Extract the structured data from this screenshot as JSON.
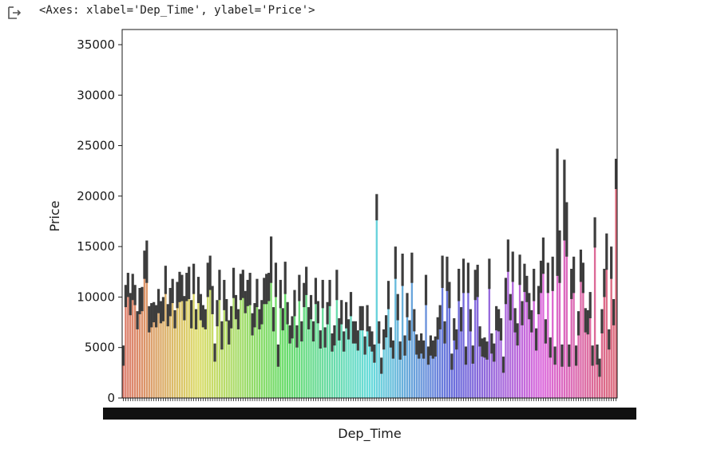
{
  "output_prompt": {
    "icon": "output-arrow-icon",
    "text": "<Axes: xlabel='Dep_Time', ylabel='Price'>"
  },
  "chart_data": {
    "type": "bar",
    "title": "",
    "xlabel": "Dep_Time",
    "ylabel": "Price",
    "ylim": [
      0,
      36500
    ],
    "yticks": [
      0,
      5000,
      10000,
      15000,
      20000,
      25000,
      30000,
      35000
    ],
    "grid": false,
    "legend": "none",
    "palette": "husl",
    "values": [
      4200,
      10100,
      11200,
      9300,
      11000,
      10200,
      7700,
      9600,
      9800,
      13200,
      13500,
      7800,
      8200,
      8500,
      8100,
      9600,
      8500,
      8800,
      11700,
      8200,
      9500,
      10600,
      7800,
      10200,
      11000,
      10900,
      8900,
      11000,
      11400,
      8300,
      11800,
      7800,
      10700,
      9000,
      8100,
      7800,
      11700,
      12400,
      9700,
      4500,
      8400,
      11200,
      6200,
      10200,
      8700,
      6500,
      8000,
      11400,
      9000,
      7800,
      11000,
      11300,
      9500,
      10400,
      10800,
      7300,
      8200,
      10400,
      7800,
      8500,
      10600,
      10800,
      11000,
      13700,
      7800,
      11700,
      4200,
      10300,
      7800,
      11900,
      8400,
      6300,
      7000,
      9400,
      6100,
      10900,
      6600,
      10200,
      11600,
      7900,
      9000,
      6600,
      10600,
      8500,
      5800,
      10300,
      6000,
      8400,
      10400,
      5500,
      6200,
      11200,
      6800,
      8500,
      5600,
      8200,
      6800,
      9300,
      6500,
      6500,
      5700,
      7900,
      7900,
      5200,
      7900,
      6100,
      5600,
      4400,
      18900,
      6500,
      3200,
      5800,
      7100,
      10200,
      6000,
      4800,
      13400,
      9000,
      4700,
      12700,
      5200,
      9200,
      6700,
      12900,
      7700,
      5300,
      4800,
      5400,
      4800,
      10700,
      4200,
      5200,
      4800,
      5100,
      6900,
      8000,
      12500,
      6500,
      12300,
      10200,
      3600,
      6800,
      5800,
      11200,
      7800,
      12100,
      4200,
      11900,
      7700,
      4300,
      11200,
      11600,
      6100,
      5000,
      5000,
      4700,
      12300,
      5400,
      4500,
      7900,
      7700,
      6800,
      3300,
      10600,
      14100,
      9000,
      13000,
      7700,
      6300,
      12700,
      8400,
      11900,
      10800,
      9100,
      7600,
      11200,
      5800,
      9700,
      12000,
      14100,
      6600,
      11900,
      5000,
      12300,
      4200,
      18400,
      14000,
      4200,
      19600,
      16700,
      4200,
      11300,
      12200,
      4200,
      7400,
      13100,
      11900,
      7700,
      7500,
      9200,
      4200,
      16400,
      4300,
      3000,
      7600,
      11400,
      14500,
      5800,
      13400,
      8500,
      22200
    ],
    "errors": [
      1000,
      1100,
      1200,
      1100,
      1300,
      1000,
      900,
      1300,
      1200,
      1400,
      2100,
      1300,
      1200,
      1000,
      1100,
      1200,
      1100,
      1200,
      1400,
      1100,
      1400,
      1200,
      900,
      1300,
      1500,
      1300,
      1200,
      1400,
      1600,
      1400,
      1500,
      1000,
      1300,
      1300,
      1100,
      1000,
      1700,
      1700,
      1400,
      900,
      1300,
      1500,
      1400,
      1500,
      1100,
      1200,
      1100,
      1500,
      1200,
      1000,
      1300,
      1400,
      1100,
      1300,
      1600,
      1100,
      1200,
      1400,
      1000,
      1200,
      1300,
      1500,
      1400,
      2300,
      1200,
      1700,
      1100,
      1400,
      1100,
      1600,
      1100,
      900,
      1100,
      1300,
      1100,
      1300,
      1000,
      1200,
      1400,
      1100,
      1200,
      1000,
      1300,
      1100,
      900,
      1400,
      1000,
      1100,
      1300,
      900,
      1000,
      1500,
      1100,
      1200,
      1000,
      1300,
      1000,
      1200,
      1100,
      1100,
      1000,
      1200,
      1200,
      900,
      1300,
      1000,
      1000,
      900,
      1300,
      1100,
      800,
      1000,
      1100,
      1400,
      1000,
      900,
      1600,
      1300,
      900,
      1600,
      1000,
      1200,
      1000,
      1500,
      1100,
      1000,
      900,
      1000,
      900,
      1500,
      900,
      1000,
      900,
      1000,
      1100,
      1200,
      1600,
      1100,
      1700,
      1300,
      800,
      1100,
      1000,
      1600,
      1200,
      1700,
      900,
      1500,
      1100,
      900,
      1500,
      1600,
      1000,
      900,
      1000,
      900,
      1500,
      1000,
      900,
      1200,
      1100,
      1100,
      800,
      1300,
      1600,
      1300,
      1500,
      1200,
      1100,
      1500,
      1200,
      1400,
      1300,
      1300,
      1100,
      1600,
      1100,
      1400,
      1600,
      1800,
      1200,
      1500,
      1000,
      1700,
      900,
      6300,
      2600,
      1100,
      4000,
      2700,
      1100,
      1500,
      1800,
      1000,
      1200,
      1600,
      1500,
      1200,
      1200,
      1300,
      1000,
      1500,
      1000,
      900,
      1200,
      1400,
      1800,
      1000,
      1600,
      1300,
      1500
    ]
  }
}
